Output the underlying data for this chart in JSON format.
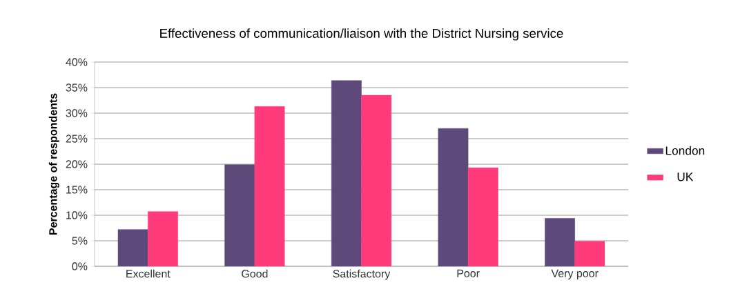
{
  "chart_data": {
    "type": "bar",
    "title": "Effectiveness of communication/liaison with the District Nursing service",
    "ylabel": "Percentage of respondents",
    "categories": [
      "Excellent",
      "Good",
      "Satisfactory",
      "Poor",
      "Very poor"
    ],
    "series": [
      {
        "name": "London",
        "color": "#5e4a7a",
        "values": [
          7.2,
          19.9,
          36.4,
          27.0,
          9.4
        ]
      },
      {
        "name": "UK",
        "color": "#ff3b7b",
        "values": [
          10.7,
          31.3,
          33.5,
          19.3,
          4.9
        ]
      }
    ],
    "ylim": [
      0,
      40
    ],
    "yticks": [
      {
        "value": 0,
        "label": "0%"
      },
      {
        "value": 5,
        "label": "5%"
      },
      {
        "value": 10,
        "label": "10%"
      },
      {
        "value": 15,
        "label": "15%"
      },
      {
        "value": 20,
        "label": "20%"
      },
      {
        "value": 25,
        "label": "25%"
      },
      {
        "value": 30,
        "label": "30%"
      },
      {
        "value": 35,
        "label": "35%"
      },
      {
        "value": 40,
        "label": "40%"
      }
    ],
    "grid": "y",
    "legend": "right"
  }
}
